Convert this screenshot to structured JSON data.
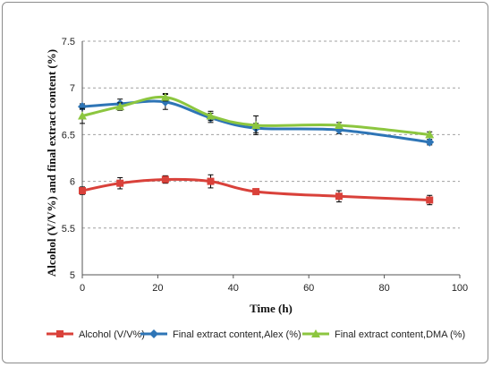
{
  "chart_data": {
    "type": "line",
    "xlabel": "Time (h)",
    "ylabel": "Alcohol (V/V%) and final extract content (%)",
    "xlim": [
      0,
      100
    ],
    "ylim": [
      5,
      7.5
    ],
    "xticks": [
      0,
      20,
      40,
      60,
      80,
      100
    ],
    "yticks": [
      5,
      5.5,
      6,
      6.5,
      7,
      7.5
    ],
    "grid": "horizontal dashed",
    "legend": "bottom",
    "series": [
      {
        "name": "Alcohol (V/V%)",
        "color": "#d9413a",
        "marker": "square",
        "x": [
          0,
          10,
          22,
          34,
          46,
          68,
          92
        ],
        "y": [
          5.9,
          5.98,
          6.02,
          6.0,
          5.89,
          5.84,
          5.8
        ],
        "err": [
          0.04,
          0.06,
          0.04,
          0.07,
          0.03,
          0.06,
          0.05
        ]
      },
      {
        "name": "Final extract content,Alex (%)",
        "color": "#2e75b6",
        "marker": "diamond",
        "x": [
          0,
          10,
          22,
          34,
          46,
          68,
          92
        ],
        "y": [
          6.8,
          6.83,
          6.85,
          6.68,
          6.57,
          6.55,
          6.42
        ],
        "err": [
          0.03,
          0.05,
          0.08,
          0.05,
          0.05,
          0.04,
          0.03
        ]
      },
      {
        "name": "Final extract content,DMA (%)",
        "color": "#8cc63f",
        "marker": "triangle",
        "x": [
          0,
          10,
          22,
          34,
          46,
          68,
          92
        ],
        "y": [
          6.7,
          6.8,
          6.9,
          6.7,
          6.6,
          6.6,
          6.5
        ],
        "err": [
          0.08,
          0.04,
          0.04,
          0.05,
          0.1,
          0.03,
          0.03
        ]
      }
    ]
  }
}
